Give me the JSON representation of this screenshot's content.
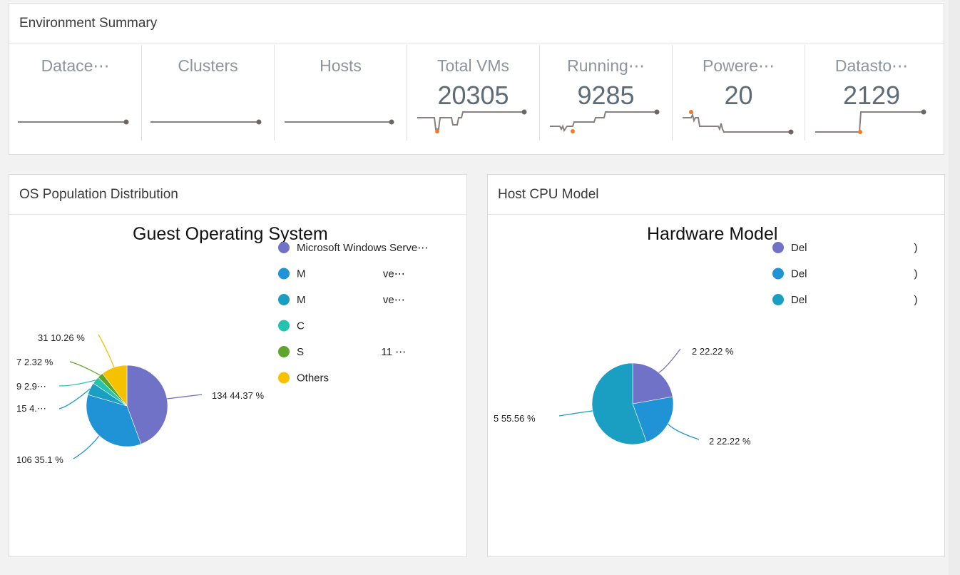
{
  "environment_summary": {
    "title": "Environment Summary",
    "metrics": [
      {
        "label": "Datace⋯",
        "value": ""
      },
      {
        "label": "Clusters",
        "value": ""
      },
      {
        "label": "Hosts",
        "value": ""
      },
      {
        "label": "Total VMs",
        "value": "20305"
      },
      {
        "label": "Running⋯",
        "value": "9285"
      },
      {
        "label": "Powere⋯",
        "value": "20"
      },
      {
        "label": "Datasto⋯",
        "value": "2129"
      }
    ]
  },
  "os_panel": {
    "title": "OS Population Distribution",
    "chart_title": "Guest Operating System",
    "legend": [
      {
        "label": "Microsoft Windows Serve⋯",
        "color": "#6f72c6"
      },
      {
        "label": "M                          ve⋯",
        "color": "#1f93d6"
      },
      {
        "label": "M                          ve⋯",
        "color": "#1a9ec2"
      },
      {
        "label": "C",
        "color": "#26c2b0"
      },
      {
        "label": "S                          11 ⋯",
        "color": "#5fa52b"
      },
      {
        "label": "Others",
        "color": "#f6c200"
      }
    ],
    "slice_labels": [
      "134 44.37 %",
      "106 35.1 %",
      "15 4.⋯",
      "9 2.9⋯",
      "7 2.32 %",
      "31 10.26 %"
    ]
  },
  "cpu_panel": {
    "title": "Host CPU Model",
    "chart_title": "Hardware Model",
    "legend": [
      {
        "label": "Del                                    )",
        "color": "#6f72c6"
      },
      {
        "label": "Del                                    )",
        "color": "#1f93d6"
      },
      {
        "label": "Del                                    )",
        "color": "#1a9ec2"
      }
    ],
    "slice_labels": [
      "2 22.22 %",
      "2 22.22 %",
      "5 55.56 %"
    ]
  },
  "chart_data": [
    {
      "type": "pie",
      "title": "Guest Operating System",
      "categories": [
        "Microsoft Windows Serve⋯",
        "M                          ve⋯",
        "M                          ve⋯",
        "C",
        "S                          11 ⋯",
        "Others"
      ],
      "values": [
        134,
        106,
        15,
        9,
        7,
        31
      ],
      "percent": [
        44.37,
        35.1,
        4.97,
        2.98,
        2.32,
        10.26
      ],
      "colors": [
        "#6f72c6",
        "#1f93d6",
        "#1a9ec2",
        "#26c2b0",
        "#5fa52b",
        "#f6c200"
      ],
      "legend_position": "right"
    },
    {
      "type": "pie",
      "title": "Hardware Model",
      "categories": [
        "Del                                    )",
        "Del                                    )",
        "Del                                    )"
      ],
      "values": [
        2,
        2,
        5
      ],
      "percent": [
        22.22,
        22.22,
        55.56
      ],
      "colors": [
        "#6f72c6",
        "#1f93d6",
        "#1a9ec2"
      ],
      "legend_position": "right"
    }
  ]
}
